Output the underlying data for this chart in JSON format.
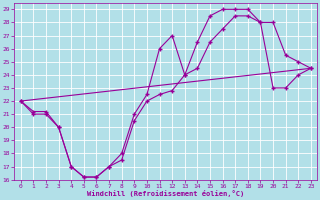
{
  "xlabel": "Windchill (Refroidissement éolien,°C)",
  "ylabel": "",
  "bg_color": "#b2e0e8",
  "grid_color": "#ffffff",
  "line_color": "#990099",
  "xlim": [
    -0.5,
    23.5
  ],
  "ylim": [
    16,
    29.5
  ],
  "xticks": [
    0,
    1,
    2,
    3,
    4,
    5,
    6,
    7,
    8,
    9,
    10,
    11,
    12,
    13,
    14,
    15,
    16,
    17,
    18,
    19,
    20,
    21,
    22,
    23
  ],
  "yticks": [
    16,
    17,
    18,
    19,
    20,
    21,
    22,
    23,
    24,
    25,
    26,
    27,
    28,
    29
  ],
  "line1_x": [
    0,
    1,
    2,
    3,
    4,
    5,
    6,
    7,
    8,
    9,
    10,
    11,
    12,
    13,
    14,
    15,
    16,
    17,
    18,
    19,
    20,
    21,
    22,
    23
  ],
  "line1_y": [
    22,
    21,
    21,
    20,
    17,
    16.2,
    16.2,
    17,
    18,
    21,
    22.5,
    26,
    27,
    24,
    26.5,
    28.5,
    29,
    29,
    29,
    28,
    28,
    25.5,
    25,
    24.5
  ],
  "line2_x": [
    0,
    1,
    2,
    3,
    4,
    5,
    6,
    7,
    8,
    9,
    10,
    11,
    12,
    13,
    14,
    15,
    16,
    17,
    18,
    19,
    20,
    21,
    22,
    23
  ],
  "line2_y": [
    22,
    21.2,
    21.2,
    20,
    17,
    16.2,
    16.2,
    17,
    17.5,
    20.5,
    22,
    22.5,
    22.8,
    24,
    24.5,
    26.5,
    27.5,
    28.5,
    28.5,
    28,
    23,
    23,
    24,
    24.5
  ],
  "line3_x": [
    0,
    23
  ],
  "line3_y": [
    22,
    24.5
  ]
}
